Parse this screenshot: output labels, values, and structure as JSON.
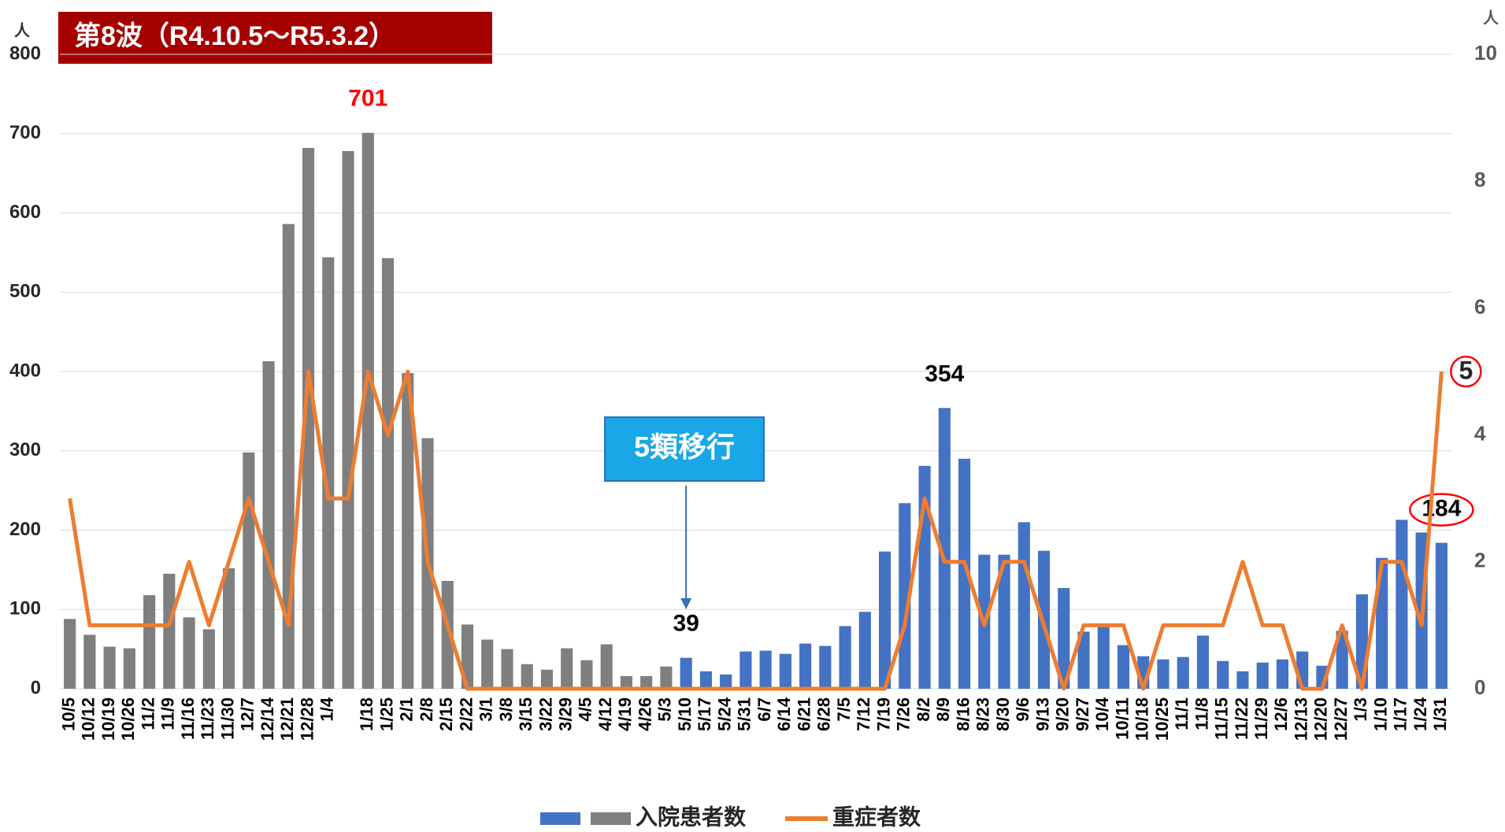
{
  "chart_data": {
    "type": "bar-line",
    "title": "第8波（R4.10.5～R5.3.2）",
    "y_unit": "人",
    "y2_unit": "人",
    "categories": [
      "10/5",
      "10/12",
      "10/19",
      "10/26",
      "11/2",
      "11/9",
      "11/16",
      "11/23",
      "11/30",
      "12/7",
      "12/14",
      "12/21",
      "12/28",
      "1/4",
      null,
      "1/18",
      "1/25",
      "2/1",
      "2/8",
      "2/15",
      "2/22",
      "3/1",
      "3/8",
      "3/15",
      "3/22",
      "3/29",
      "4/5",
      "4/12",
      "4/19",
      "4/26",
      "5/3",
      "5/10",
      "5/17",
      "5/24",
      "5/31",
      "6/7",
      "6/14",
      "6/21",
      "6/28",
      "7/5",
      "7/12",
      "7/19",
      "7/26",
      "8/2",
      "8/9",
      "8/16",
      "8/23",
      "8/30",
      "9/6",
      "9/13",
      "9/20",
      "9/27",
      "10/4",
      "10/11",
      "10/18",
      "10/25",
      "11/1",
      "11/8",
      "11/15",
      "11/22",
      "11/29",
      "12/6",
      "12/13",
      "12/20",
      "12/27",
      "1/3",
      "1/10",
      "1/17",
      "1/24",
      "1/31"
    ],
    "series": [
      {
        "name": "入院患者数",
        "type": "bar",
        "colors": [
          "#7f7f7f",
          "#7f7f7f",
          "#7f7f7f",
          "#7f7f7f",
          "#7f7f7f",
          "#7f7f7f",
          "#7f7f7f",
          "#7f7f7f",
          "#7f7f7f",
          "#7f7f7f",
          "#7f7f7f",
          "#7f7f7f",
          "#7f7f7f",
          "#7f7f7f",
          "#7f7f7f",
          "#7f7f7f",
          "#7f7f7f",
          "#7f7f7f",
          "#7f7f7f",
          "#7f7f7f",
          "#7f7f7f",
          "#7f7f7f",
          "#7f7f7f",
          "#7f7f7f",
          "#7f7f7f",
          "#7f7f7f",
          "#7f7f7f",
          "#7f7f7f",
          "#7f7f7f",
          "#7f7f7f",
          "#7f7f7f",
          "#4472c4",
          "#4472c4",
          "#4472c4",
          "#4472c4",
          "#4472c4",
          "#4472c4",
          "#4472c4",
          "#4472c4",
          "#4472c4",
          "#4472c4",
          "#4472c4",
          "#4472c4",
          "#4472c4",
          "#4472c4",
          "#4472c4",
          "#4472c4",
          "#4472c4",
          "#4472c4",
          "#4472c4",
          "#4472c4",
          "#4472c4",
          "#4472c4",
          "#4472c4",
          "#4472c4",
          "#4472c4",
          "#4472c4",
          "#4472c4",
          "#4472c4",
          "#4472c4",
          "#4472c4",
          "#4472c4",
          "#4472c4",
          "#4472c4",
          "#4472c4",
          "#4472c4",
          "#4472c4",
          "#4472c4",
          "#4472c4",
          "#4472c4"
        ],
        "values": [
          88,
          68,
          53,
          51,
          118,
          145,
          90,
          75,
          152,
          298,
          413,
          586,
          682,
          544,
          678,
          701,
          543,
          398,
          316,
          136,
          81,
          62,
          50,
          31,
          24,
          51,
          36,
          56,
          16,
          16,
          28,
          39,
          22,
          18,
          47,
          48,
          44,
          57,
          54,
          79,
          97,
          173,
          234,
          281,
          354,
          290,
          169,
          169,
          210,
          174,
          127,
          72,
          78,
          55,
          41,
          37,
          40,
          67,
          35,
          22,
          33,
          37,
          47,
          29,
          73,
          119,
          165,
          213,
          197,
          184
        ],
        "data_labels": [
          {
            "index": 15,
            "color": "#ff0000"
          },
          {
            "index": 31
          },
          {
            "index": 44
          },
          {
            "index": 69,
            "circled": true
          }
        ]
      },
      {
        "name": "重症者数",
        "type": "line",
        "axis": "y2",
        "color": "#ed7d31",
        "values": [
          3,
          1,
          1,
          1,
          1,
          1,
          2,
          1,
          2,
          3,
          2,
          1,
          5,
          3,
          3,
          5,
          4,
          5,
          2,
          1,
          0,
          0,
          0,
          0,
          0,
          0,
          0,
          0,
          0,
          0,
          0,
          0,
          0,
          0,
          0,
          0,
          0,
          0,
          0,
          0,
          0,
          0,
          1,
          3,
          2,
          2,
          1,
          2,
          2,
          1,
          0,
          1,
          1,
          1,
          0,
          1,
          1,
          1,
          1,
          2,
          1,
          1,
          0,
          0,
          1,
          0,
          2,
          2,
          1,
          5
        ],
        "data_labels": [
          {
            "index": 69,
            "circled": true
          }
        ]
      }
    ],
    "annotations": [
      {
        "text": "5類移行",
        "x": "5/10"
      }
    ],
    "ylim": [
      0,
      800
    ],
    "yticks": [
      0,
      100,
      200,
      300,
      400,
      500,
      600,
      700,
      800
    ],
    "y2lim": [
      0,
      10
    ],
    "y2ticks": [
      0,
      2,
      4,
      6,
      8,
      10
    ],
    "grid": true
  }
}
